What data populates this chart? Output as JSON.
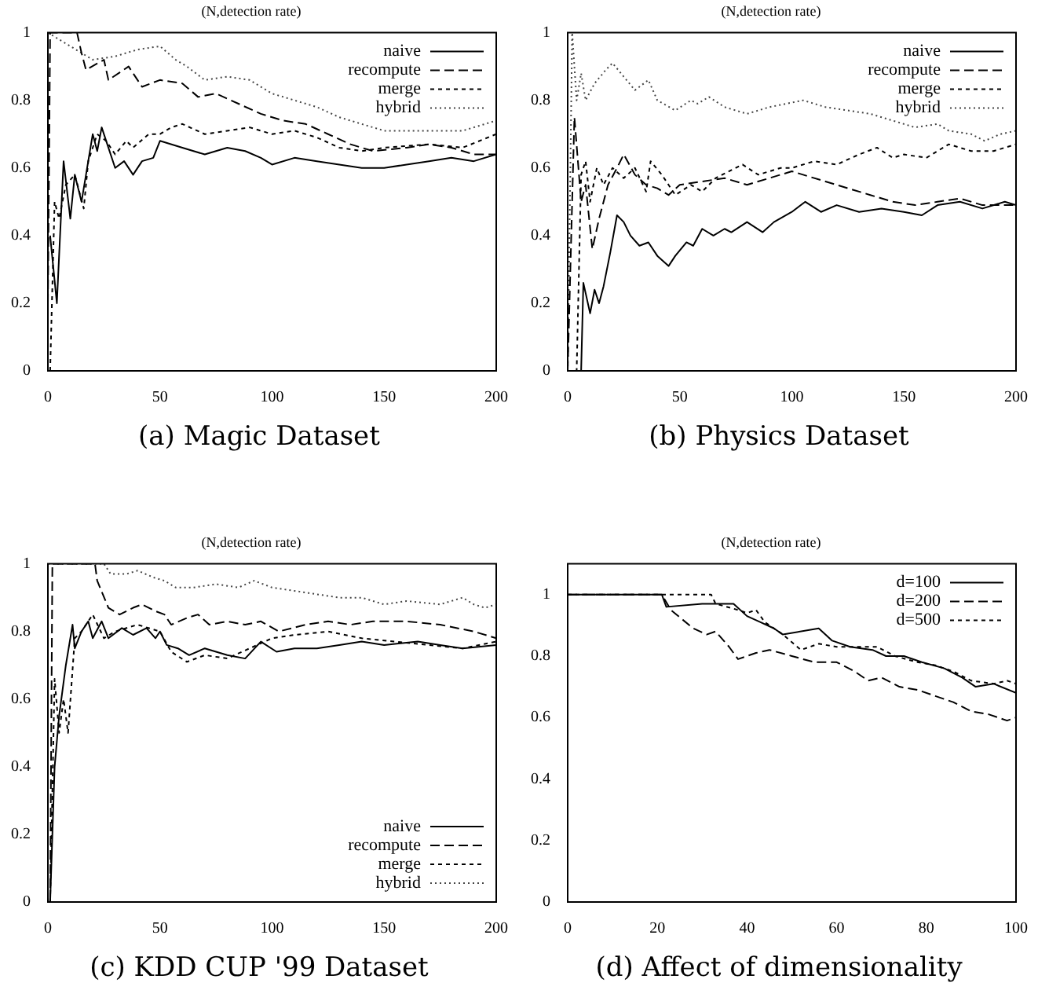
{
  "chart_data": [
    {
      "type": "line",
      "title": "(N,detection rate)",
      "annotations": [
        "(a) Magic Dataset"
      ],
      "xlim": [
        0,
        200
      ],
      "xticks": [
        0,
        50,
        100,
        150,
        200
      ],
      "ylim": [
        0,
        1
      ],
      "yticks": [
        0,
        0.2,
        0.4,
        0.6,
        0.8,
        1
      ],
      "grid": false,
      "legend": "top right",
      "marker": "none",
      "series": [
        {
          "name": "naive",
          "color": "#000000",
          "line_style": "solid",
          "x": [
            1,
            4,
            7,
            10,
            12,
            15,
            17,
            20,
            22,
            24,
            26,
            30,
            34,
            38,
            42,
            47,
            50,
            60,
            70,
            80,
            88,
            95,
            100,
            110,
            120,
            130,
            140,
            150,
            160,
            170,
            180,
            190,
            200
          ],
          "values": [
            0.4,
            0.2,
            0.62,
            0.45,
            0.58,
            0.5,
            0.58,
            0.7,
            0.65,
            0.72,
            0.68,
            0.6,
            0.62,
            0.58,
            0.62,
            0.63,
            0.68,
            0.66,
            0.64,
            0.66,
            0.65,
            0.63,
            0.61,
            0.63,
            0.62,
            0.61,
            0.6,
            0.6,
            0.61,
            0.62,
            0.63,
            0.62,
            0.64
          ]
        },
        {
          "name": "recompute",
          "color": "#000000",
          "line_style": "dashed",
          "x": [
            0,
            1,
            13,
            15,
            17,
            25,
            27,
            36,
            42,
            50,
            60,
            67,
            75,
            85,
            95,
            105,
            115,
            125,
            135,
            145,
            160,
            170,
            180,
            190,
            200
          ],
          "values": [
            0.2,
            1,
            1,
            0.94,
            0.89,
            0.92,
            0.86,
            0.9,
            0.84,
            0.86,
            0.85,
            0.81,
            0.82,
            0.79,
            0.76,
            0.74,
            0.73,
            0.7,
            0.67,
            0.65,
            0.66,
            0.67,
            0.66,
            0.64,
            0.64
          ]
        },
        {
          "name": "merge",
          "color": "#000000",
          "line_style": "dotted",
          "x": [
            1,
            3,
            5,
            8,
            12,
            16,
            18,
            22,
            26,
            30,
            35,
            38,
            45,
            50,
            55,
            60,
            70,
            80,
            90,
            100,
            110,
            120,
            130,
            140,
            150,
            170,
            185,
            200
          ],
          "values": [
            0,
            0.5,
            0.45,
            0.55,
            0.58,
            0.48,
            0.62,
            0.7,
            0.68,
            0.64,
            0.68,
            0.66,
            0.7,
            0.7,
            0.72,
            0.73,
            0.7,
            0.71,
            0.72,
            0.7,
            0.71,
            0.69,
            0.66,
            0.65,
            0.66,
            0.67,
            0.66,
            0.7
          ]
        },
        {
          "name": "hybrid",
          "color": "#444444",
          "line_style": "dotted",
          "x": [
            0,
            20,
            30,
            40,
            50,
            57,
            62,
            70,
            80,
            90,
            100,
            110,
            120,
            130,
            140,
            150,
            170,
            185,
            200
          ],
          "values": [
            1,
            0.92,
            0.93,
            0.95,
            0.96,
            0.92,
            0.9,
            0.86,
            0.87,
            0.86,
            0.82,
            0.8,
            0.78,
            0.75,
            0.73,
            0.71,
            0.71,
            0.71,
            0.74
          ]
        }
      ]
    },
    {
      "type": "line",
      "title": "(N,detection rate)",
      "annotations": [
        "(b) Physics Dataset"
      ],
      "xlim": [
        0,
        200
      ],
      "xticks": [
        0,
        50,
        100,
        150,
        200
      ],
      "ylim": [
        0,
        1
      ],
      "yticks": [
        0,
        0.2,
        0.4,
        0.6,
        0.8,
        1
      ],
      "grid": false,
      "legend": "top right",
      "marker": "none",
      "series": [
        {
          "name": "naive",
          "color": "#000000",
          "line_style": "solid",
          "x": [
            0,
            6,
            7,
            10,
            12,
            14,
            16,
            19,
            22,
            25,
            28,
            32,
            36,
            40,
            45,
            48,
            53,
            56,
            60,
            65,
            70,
            73,
            80,
            87,
            92,
            100,
            106,
            113,
            120,
            130,
            140,
            150,
            158,
            165,
            175,
            185,
            195,
            200
          ],
          "values": [
            0,
            0,
            0.26,
            0.17,
            0.24,
            0.2,
            0.25,
            0.35,
            0.46,
            0.44,
            0.4,
            0.37,
            0.38,
            0.34,
            0.31,
            0.34,
            0.38,
            0.37,
            0.42,
            0.4,
            0.42,
            0.41,
            0.44,
            0.41,
            0.44,
            0.47,
            0.5,
            0.47,
            0.49,
            0.47,
            0.48,
            0.47,
            0.46,
            0.49,
            0.5,
            0.48,
            0.5,
            0.49
          ]
        },
        {
          "name": "recompute",
          "color": "#000000",
          "line_style": "dashed",
          "x": [
            0,
            3,
            6,
            8,
            11,
            14,
            18,
            22,
            25,
            30,
            35,
            40,
            45,
            50,
            60,
            70,
            80,
            90,
            100,
            105,
            115,
            125,
            135,
            145,
            155,
            165,
            175,
            185,
            200
          ],
          "values": [
            0,
            0.75,
            0.5,
            0.55,
            0.36,
            0.45,
            0.55,
            0.6,
            0.64,
            0.58,
            0.55,
            0.54,
            0.52,
            0.55,
            0.56,
            0.57,
            0.55,
            0.57,
            0.59,
            0.58,
            0.56,
            0.54,
            0.52,
            0.5,
            0.49,
            0.5,
            0.51,
            0.49,
            0.49
          ]
        },
        {
          "name": "merge",
          "color": "#000000",
          "line_style": "dotted",
          "x": [
            0,
            4,
            6,
            8,
            10,
            13,
            16,
            20,
            25,
            30,
            35,
            37,
            42,
            48,
            55,
            60,
            66,
            78,
            85,
            95,
            100,
            110,
            120,
            130,
            138,
            145,
            150,
            160,
            170,
            180,
            190,
            200
          ],
          "values": [
            0,
            0,
            0.58,
            0.62,
            0.5,
            0.6,
            0.55,
            0.6,
            0.57,
            0.6,
            0.53,
            0.62,
            0.58,
            0.52,
            0.55,
            0.53,
            0.57,
            0.61,
            0.58,
            0.6,
            0.6,
            0.62,
            0.61,
            0.64,
            0.66,
            0.63,
            0.64,
            0.63,
            0.67,
            0.65,
            0.65,
            0.67
          ]
        },
        {
          "name": "hybrid",
          "color": "#444444",
          "line_style": "dotted",
          "x": [
            0,
            2,
            4,
            6,
            8,
            12,
            17,
            20,
            25,
            30,
            36,
            40,
            48,
            55,
            58,
            63,
            70,
            75,
            80,
            90,
            105,
            115,
            125,
            135,
            145,
            155,
            165,
            170,
            180,
            186,
            193,
            200
          ],
          "values": [
            0,
            1,
            0.8,
            0.88,
            0.8,
            0.85,
            0.89,
            0.91,
            0.87,
            0.83,
            0.86,
            0.8,
            0.77,
            0.8,
            0.79,
            0.81,
            0.78,
            0.77,
            0.76,
            0.78,
            0.8,
            0.78,
            0.77,
            0.76,
            0.74,
            0.72,
            0.73,
            0.71,
            0.7,
            0.68,
            0.7,
            0.71
          ]
        }
      ]
    },
    {
      "type": "line",
      "title": "(N,detection rate)",
      "annotations": [
        "(c) KDD CUP '99 Dataset"
      ],
      "xlim": [
        0,
        200
      ],
      "xticks": [
        0,
        50,
        100,
        150,
        200
      ],
      "ylim": [
        0,
        1
      ],
      "yticks": [
        0,
        0.2,
        0.4,
        0.6,
        0.8,
        1
      ],
      "grid": false,
      "legend": "bottom right",
      "marker": "none",
      "series": [
        {
          "name": "naive",
          "color": "#000000",
          "line_style": "solid",
          "x": [
            1,
            3,
            5,
            8,
            11,
            12,
            15,
            18,
            20,
            24,
            27,
            33,
            38,
            44,
            48,
            50,
            53,
            58,
            63,
            70,
            80,
            88,
            95,
            102,
            110,
            120,
            130,
            140,
            150,
            165,
            175,
            185,
            200
          ],
          "values": [
            0,
            0.4,
            0.55,
            0.7,
            0.82,
            0.75,
            0.8,
            0.83,
            0.78,
            0.83,
            0.78,
            0.81,
            0.79,
            0.81,
            0.78,
            0.8,
            0.76,
            0.75,
            0.73,
            0.75,
            0.73,
            0.72,
            0.77,
            0.74,
            0.75,
            0.75,
            0.76,
            0.77,
            0.76,
            0.77,
            0.76,
            0.75,
            0.76
          ]
        },
        {
          "name": "recompute",
          "color": "#000000",
          "line_style": "dashed",
          "x": [
            1,
            2,
            21,
            22,
            27,
            32,
            38,
            42,
            48,
            52,
            55,
            62,
            67,
            72,
            80,
            88,
            95,
            103,
            115,
            125,
            135,
            145,
            160,
            175,
            190,
            200
          ],
          "values": [
            0,
            1,
            1,
            0.95,
            0.87,
            0.85,
            0.87,
            0.88,
            0.86,
            0.85,
            0.82,
            0.84,
            0.85,
            0.82,
            0.83,
            0.82,
            0.83,
            0.8,
            0.82,
            0.83,
            0.82,
            0.83,
            0.83,
            0.82,
            0.8,
            0.78
          ]
        },
        {
          "name": "merge",
          "color": "#000000",
          "line_style": "dotted",
          "x": [
            1,
            3,
            5,
            7,
            9,
            12,
            15,
            20,
            25,
            30,
            40,
            50,
            55,
            62,
            70,
            80,
            90,
            100,
            110,
            125,
            140,
            155,
            170,
            185,
            200
          ],
          "values": [
            0,
            0.66,
            0.5,
            0.6,
            0.5,
            0.78,
            0.8,
            0.85,
            0.78,
            0.8,
            0.82,
            0.8,
            0.74,
            0.71,
            0.73,
            0.72,
            0.75,
            0.78,
            0.79,
            0.8,
            0.78,
            0.77,
            0.76,
            0.75,
            0.77
          ]
        },
        {
          "name": "hybrid",
          "color": "#444444",
          "line_style": "dotted",
          "x": [
            0,
            25,
            28,
            35,
            40,
            47,
            52,
            57,
            65,
            75,
            85,
            92,
            100,
            110,
            120,
            130,
            140,
            150,
            160,
            175,
            185,
            190,
            195,
            200
          ],
          "values": [
            1,
            1,
            0.97,
            0.97,
            0.98,
            0.96,
            0.95,
            0.93,
            0.93,
            0.94,
            0.93,
            0.95,
            0.93,
            0.92,
            0.91,
            0.9,
            0.9,
            0.88,
            0.89,
            0.88,
            0.9,
            0.88,
            0.87,
            0.88
          ]
        }
      ]
    },
    {
      "type": "line",
      "title": "(N,detection rate)",
      "annotations": [
        "(d) Affect of dimensionality"
      ],
      "xlim": [
        0,
        100
      ],
      "xticks": [
        0,
        20,
        40,
        60,
        80,
        100
      ],
      "ylim": [
        0,
        1.1
      ],
      "yticks": [
        0,
        0.2,
        0.4,
        0.6,
        0.8,
        1
      ],
      "grid": false,
      "legend": "top right",
      "marker": "none",
      "series": [
        {
          "name": "d=100",
          "color": "#000000",
          "line_style": "solid",
          "x": [
            0,
            21,
            22,
            30,
            37,
            40,
            43,
            46,
            48,
            56,
            59,
            63,
            68,
            71,
            75,
            79,
            84,
            88,
            91,
            95,
            100
          ],
          "values": [
            1,
            1,
            0.96,
            0.97,
            0.97,
            0.93,
            0.91,
            0.89,
            0.87,
            0.89,
            0.85,
            0.83,
            0.82,
            0.8,
            0.8,
            0.78,
            0.76,
            0.73,
            0.7,
            0.71,
            0.68
          ]
        },
        {
          "name": "d=200",
          "color": "#000000",
          "line_style": "dashed",
          "x": [
            0,
            21,
            23,
            28,
            31,
            33,
            36,
            38,
            42,
            45,
            50,
            55,
            60,
            64,
            67,
            70,
            74,
            78,
            82,
            86,
            90,
            94,
            98,
            100
          ],
          "values": [
            1,
            1,
            0.95,
            0.89,
            0.87,
            0.88,
            0.83,
            0.79,
            0.81,
            0.82,
            0.8,
            0.78,
            0.78,
            0.75,
            0.72,
            0.73,
            0.7,
            0.69,
            0.67,
            0.65,
            0.62,
            0.61,
            0.59,
            0.6
          ]
        },
        {
          "name": "d=500",
          "color": "#000000",
          "line_style": "dotted",
          "x": [
            0,
            32,
            33,
            38,
            40,
            42,
            44,
            48,
            52,
            56,
            60,
            64,
            69,
            73,
            78,
            82,
            86,
            90,
            95,
            98,
            100
          ],
          "values": [
            1,
            1,
            0.97,
            0.95,
            0.94,
            0.95,
            0.91,
            0.87,
            0.82,
            0.84,
            0.83,
            0.83,
            0.83,
            0.8,
            0.78,
            0.77,
            0.75,
            0.72,
            0.71,
            0.72,
            0.71
          ]
        }
      ]
    }
  ]
}
